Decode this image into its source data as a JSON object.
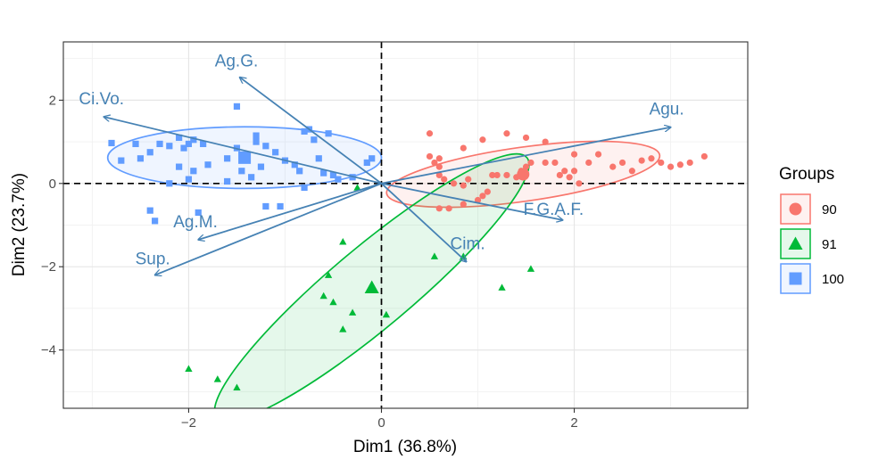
{
  "chart_data": {
    "type": "scatter",
    "xlabel": "Dim1 (36.8%)",
    "ylabel": "Dim2 (23.7%)",
    "xlim": [
      -3.3,
      3.8
    ],
    "ylim": [
      -5.4,
      3.4
    ],
    "xticks": [
      -2,
      0,
      2
    ],
    "yticks": [
      -4,
      -2,
      0,
      2
    ],
    "xtick_labels": [
      "−2",
      "0",
      "2"
    ],
    "ytick_labels": [
      "−4",
      "−2",
      "0",
      "2"
    ],
    "grid": true,
    "legend": {
      "title": "Groups",
      "position": "right"
    },
    "groups": [
      {
        "name": "90",
        "color": "#F8766D",
        "marker": "circle",
        "centroid": [
          1.47,
          0.22
        ],
        "ellipse": {
          "cx": 1.47,
          "cy": 0.22,
          "rx": 1.43,
          "ry": 0.65,
          "angle": 8
        },
        "points": [
          [
            0.5,
            1.2
          ],
          [
            0.5,
            0.65
          ],
          [
            0.6,
            0.6
          ],
          [
            0.55,
            0.5
          ],
          [
            0.6,
            0.4
          ],
          [
            0.6,
            0.2
          ],
          [
            0.65,
            0.1
          ],
          [
            0.75,
            0.0
          ],
          [
            0.85,
            -0.05
          ],
          [
            0.9,
            0.1
          ],
          [
            0.6,
            -0.6
          ],
          [
            0.7,
            -0.6
          ],
          [
            0.85,
            -0.5
          ],
          [
            1.0,
            -0.4
          ],
          [
            1.05,
            -0.3
          ],
          [
            1.1,
            -0.2
          ],
          [
            1.15,
            0.2
          ],
          [
            1.2,
            0.2
          ],
          [
            1.3,
            0.2
          ],
          [
            1.4,
            0.15
          ],
          [
            1.45,
            0.3
          ],
          [
            1.5,
            0.4
          ],
          [
            1.55,
            0.5
          ],
          [
            1.7,
            0.5
          ],
          [
            1.8,
            0.5
          ],
          [
            1.85,
            0.2
          ],
          [
            1.95,
            0.15
          ],
          [
            2.05,
            0.0
          ],
          [
            2.15,
            0.5
          ],
          [
            2.25,
            0.7
          ],
          [
            2.4,
            0.4
          ],
          [
            2.5,
            0.5
          ],
          [
            2.6,
            0.3
          ],
          [
            2.7,
            0.55
          ],
          [
            2.8,
            0.6
          ],
          [
            2.9,
            0.5
          ],
          [
            3.0,
            0.4
          ],
          [
            3.1,
            0.45
          ],
          [
            3.2,
            0.5
          ],
          [
            3.35,
            0.65
          ],
          [
            2.0,
            0.7
          ],
          [
            1.7,
            1.0
          ],
          [
            1.5,
            1.1
          ],
          [
            1.3,
            1.2
          ],
          [
            1.05,
            1.05
          ],
          [
            0.85,
            0.85
          ],
          [
            1.9,
            0.3
          ],
          [
            2.0,
            0.3
          ]
        ]
      },
      {
        "name": "91",
        "color": "#00BA38",
        "marker": "triangle",
        "centroid": [
          -0.1,
          -2.5
        ],
        "ellipse": {
          "cx": -0.1,
          "cy": -2.5,
          "rx": 2.1,
          "ry": 0.97,
          "angle": 40
        },
        "points": [
          [
            -0.25,
            -0.1
          ],
          [
            -0.4,
            -1.4
          ],
          [
            -0.55,
            -2.2
          ],
          [
            -0.6,
            -2.7
          ],
          [
            -0.5,
            -2.85
          ],
          [
            -0.3,
            -3.1
          ],
          [
            -0.4,
            -3.5
          ],
          [
            0.05,
            -3.15
          ],
          [
            0.55,
            -1.75
          ],
          [
            0.85,
            -1.75
          ],
          [
            1.25,
            -2.5
          ],
          [
            1.55,
            -2.05
          ],
          [
            -2.0,
            -4.45
          ],
          [
            -1.7,
            -4.7
          ],
          [
            -1.5,
            -4.9
          ]
        ]
      },
      {
        "name": "100",
        "color": "#619CFF",
        "marker": "square",
        "centroid": [
          -1.42,
          0.62
        ],
        "ellipse": {
          "cx": -1.42,
          "cy": 0.62,
          "rx": 1.42,
          "ry": 0.74,
          "angle": 0
        },
        "points": [
          [
            -2.8,
            0.97
          ],
          [
            -2.55,
            0.95
          ],
          [
            -2.7,
            0.55
          ],
          [
            -2.5,
            0.6
          ],
          [
            -2.4,
            0.75
          ],
          [
            -2.2,
            0.9
          ],
          [
            -2.1,
            1.1
          ],
          [
            -1.95,
            1.05
          ],
          [
            -2.05,
            0.85
          ],
          [
            -2.1,
            0.4
          ],
          [
            -1.95,
            0.3
          ],
          [
            -2.0,
            0.1
          ],
          [
            -1.8,
            0.45
          ],
          [
            -1.6,
            0.6
          ],
          [
            -1.5,
            0.85
          ],
          [
            -1.45,
            0.3
          ],
          [
            -1.35,
            0.15
          ],
          [
            -1.3,
            1.15
          ],
          [
            -1.2,
            0.9
          ],
          [
            -1.1,
            0.75
          ],
          [
            -1.0,
            0.55
          ],
          [
            -0.9,
            0.45
          ],
          [
            -0.85,
            0.3
          ],
          [
            -0.75,
            1.3
          ],
          [
            -0.7,
            1.05
          ],
          [
            -0.65,
            0.6
          ],
          [
            -0.6,
            0.25
          ],
          [
            -0.5,
            0.2
          ],
          [
            -0.45,
            0.1
          ],
          [
            -0.3,
            0.15
          ],
          [
            -0.15,
            0.5
          ],
          [
            -1.5,
            1.85
          ],
          [
            -1.2,
            -0.55
          ],
          [
            -1.05,
            -0.55
          ],
          [
            -0.8,
            -0.1
          ],
          [
            -2.4,
            -0.65
          ],
          [
            -2.35,
            -0.9
          ],
          [
            -1.9,
            -0.7
          ],
          [
            -2.2,
            0.0
          ],
          [
            -1.6,
            0.05
          ],
          [
            -1.3,
            1.0
          ],
          [
            -1.25,
            0.4
          ],
          [
            -0.8,
            1.25
          ],
          [
            -0.1,
            0.6
          ],
          [
            -0.55,
            1.2
          ],
          [
            -2.3,
            0.95
          ],
          [
            -2.0,
            0.95
          ],
          [
            -1.85,
            0.95
          ]
        ]
      }
    ],
    "variables": [
      {
        "name": "Ag.G.",
        "x": -1.47,
        "y": 2.55
      },
      {
        "name": "Ci.Vo.",
        "x": -2.88,
        "y": 1.6
      },
      {
        "name": "Agu.",
        "x": 3.0,
        "y": 1.35
      },
      {
        "name": "F.G.A.F.",
        "x": 1.88,
        "y": -0.88
      },
      {
        "name": "Cim.",
        "x": 0.88,
        "y": -1.88
      },
      {
        "name": "Ag.M.",
        "x": -1.9,
        "y": -1.35
      },
      {
        "name": "Sup.",
        "x": -2.35,
        "y": -2.2
      }
    ],
    "arrow_color": "#4682b4"
  }
}
